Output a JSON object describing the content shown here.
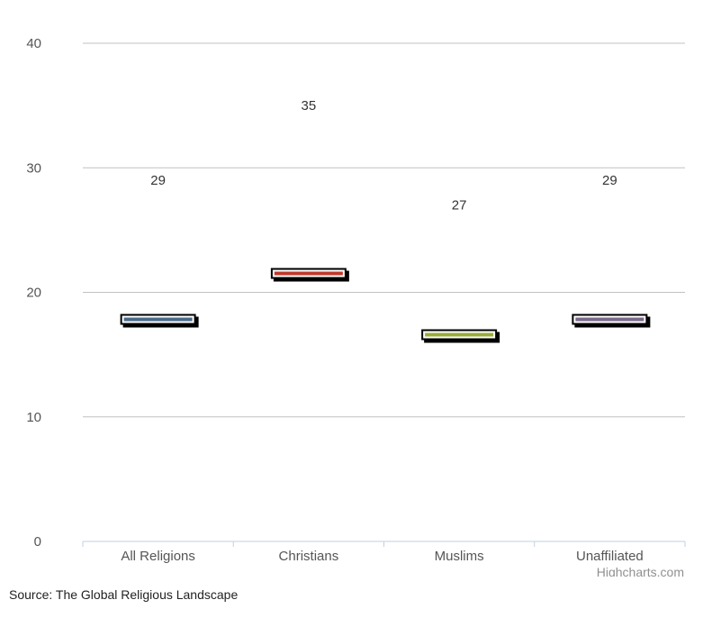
{
  "chart_data": {
    "type": "bar",
    "categories": [
      "All Religions",
      "Christians",
      "Muslims",
      "Unaffiliated"
    ],
    "values": [
      29,
      35,
      27,
      29
    ],
    "data_labels": [
      "29",
      "35",
      "27",
      "29"
    ],
    "ylim": [
      0,
      40
    ],
    "yticks": [
      "0",
      "10",
      "20",
      "30",
      "40"
    ],
    "colors": [
      "#4a6a8a",
      "#c0392b",
      "#9aab3a",
      "#7a6a8a"
    ],
    "grid": true,
    "legend": "none",
    "title": "",
    "xlabel": "",
    "ylabel": ""
  },
  "credits": "Highcharts.com",
  "source": {
    "prefix": "Source: ",
    "name": "The Global Religious Landscape"
  }
}
